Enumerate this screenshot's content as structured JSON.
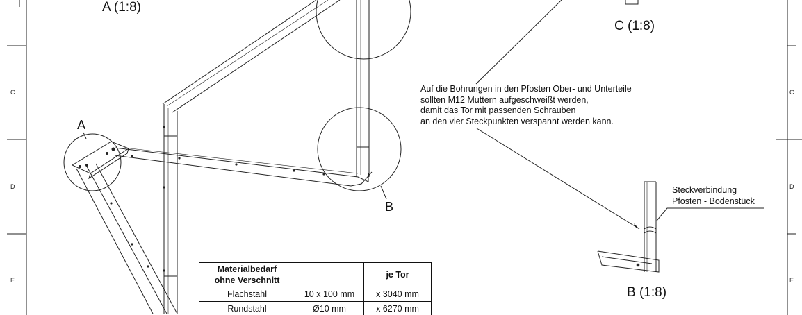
{
  "view_labels": {
    "a_top": "A (1:8)",
    "c_top": "C (1:8)",
    "a_marker": "A",
    "b_marker": "B",
    "b_view": "B (1:8)"
  },
  "zones_left": [
    "C",
    "D",
    "E"
  ],
  "zones_right": [
    "C",
    "D",
    "E"
  ],
  "note_lines": [
    "Auf die Bohrungen in den Pfosten Ober- und Unterteile",
    "sollten M12 Muttern aufgeschweißt werden,",
    "damit das Tor mit passenden Schrauben",
    "an den vier Steckpunkten verspannt werden kann."
  ],
  "callout": {
    "line1": "Steckverbindung",
    "line2": "Pfosten - Bodenstück"
  },
  "material_table": {
    "headers": [
      "Materialbedarf\nohne Verschnitt",
      "",
      "je Tor"
    ],
    "rows": [
      [
        "Flachstahl",
        "10 x 100 mm",
        "x 3040 mm"
      ],
      [
        "Rundstahl",
        "Ø10 mm",
        "x 6270 mm"
      ]
    ]
  }
}
